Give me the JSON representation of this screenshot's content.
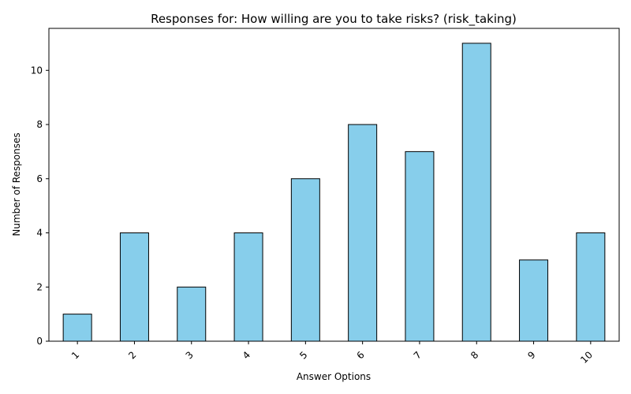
{
  "chart_data": {
    "type": "bar",
    "title": "Responses for: How willing are you to take risks? (risk_taking)",
    "xlabel": "Answer Options",
    "ylabel": "Number of Responses",
    "categories": [
      "1",
      "2",
      "3",
      "4",
      "5",
      "6",
      "7",
      "8",
      "9",
      "10"
    ],
    "values": [
      1,
      4,
      2,
      4,
      6,
      8,
      7,
      11,
      3,
      4
    ],
    "ylim": [
      0,
      11.55
    ],
    "yticks": [
      0,
      2,
      4,
      6,
      8,
      10
    ],
    "grid": false,
    "legend": "none",
    "colors": {
      "bar_fill": "#87ceeb",
      "bar_edge": "#000000",
      "axis": "#000000"
    }
  }
}
